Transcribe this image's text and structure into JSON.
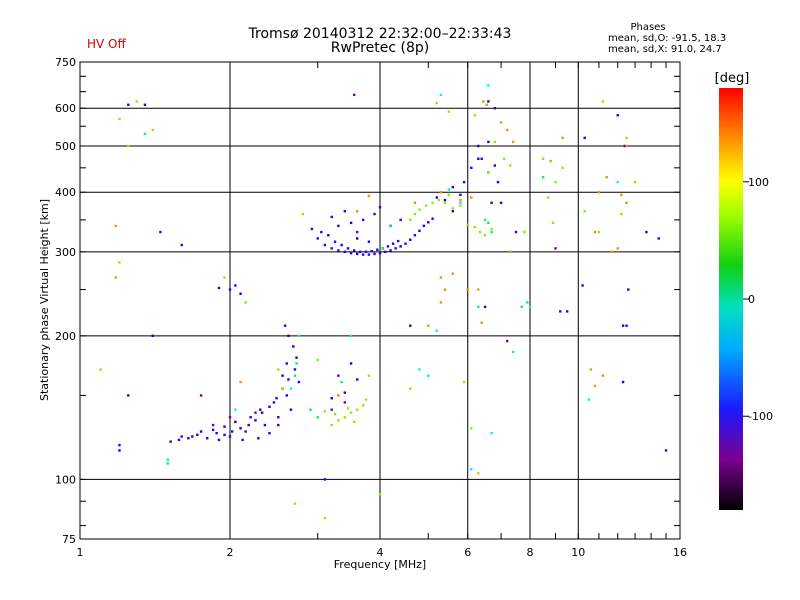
{
  "header": {
    "hv_status": "HV Off",
    "title_line1": "Tromsø 20140312 22:32:00–22:33:43",
    "title_line2": "RwPretec (8p)",
    "phases_title": "Phases",
    "phases_o": "mean, sd,O: -91.5, 18.3",
    "phases_x": "mean, sd,X:  91.0, 24.7"
  },
  "colors": {
    "background": "#ffffff",
    "grid": "#000000",
    "hv_off": "#d00000"
  },
  "chart_data": {
    "type": "scatter",
    "title": "Tromsø 20140312 22:32:00–22:33:43",
    "subtitle": "RwPretec (8p)",
    "xlabel": "Frequency [MHz]",
    "ylabel": "Stationary phase Virtual Height [km]",
    "x_scale": "log",
    "y_scale": "log",
    "xlim": [
      1,
      16
    ],
    "ylim": [
      75,
      750
    ],
    "x_ticks": [
      1,
      2,
      4,
      6,
      8,
      10,
      16
    ],
    "x_tick_labels": [
      "1",
      "2",
      "4",
      "6",
      "8",
      "10",
      "16"
    ],
    "y_ticks": [
      75,
      100,
      200,
      300,
      400,
      500,
      600,
      750
    ],
    "y_tick_labels": [
      "75",
      "100",
      "200",
      "300",
      "400",
      "500",
      "600",
      "750"
    ],
    "grid": true,
    "colorbar": {
      "label": "[deg]",
      "range": [
        -180,
        180
      ],
      "tick_values": [
        100,
        0,
        -100
      ],
      "tick_labels": [
        "100",
        "0",
        "-100"
      ]
    },
    "series": [
      {
        "phase_deg": -100,
        "points": [
          [
            1.52,
            120
          ],
          [
            1.58,
            121
          ],
          [
            1.65,
            122
          ],
          [
            1.72,
            124
          ],
          [
            1.8,
            122
          ],
          [
            1.88,
            125
          ],
          [
            1.95,
            124
          ],
          [
            2.02,
            126
          ],
          [
            2.1,
            128
          ],
          [
            2.18,
            130
          ],
          [
            2.25,
            133
          ],
          [
            2.32,
            138
          ],
          [
            2.4,
            142
          ],
          [
            2.48,
            148
          ],
          [
            2.55,
            155
          ],
          [
            2.62,
            162
          ],
          [
            2.7,
            170
          ],
          [
            2.75,
            160
          ],
          [
            2.6,
            150
          ],
          [
            2.45,
            145
          ],
          [
            2.3,
            140
          ],
          [
            2.2,
            135
          ],
          [
            2.05,
            132
          ],
          [
            1.95,
            129
          ],
          [
            1.85,
            127
          ],
          [
            1.75,
            126
          ],
          [
            1.68,
            123
          ],
          [
            1.6,
            123
          ],
          [
            2.15,
            126
          ],
          [
            2.35,
            130
          ],
          [
            2.5,
            135
          ],
          [
            2.65,
            140
          ],
          [
            2.72,
            180
          ],
          [
            2.68,
            190
          ],
          [
            2.6,
            175
          ],
          [
            2.55,
            165
          ],
          [
            2.5,
            130
          ],
          [
            2.4,
            125
          ],
          [
            2.28,
            122
          ],
          [
            2.12,
            121
          ],
          [
            2.0,
            123
          ],
          [
            1.9,
            121
          ],
          [
            2.58,
            210
          ],
          [
            2.62,
            200
          ],
          [
            2.0,
            250
          ],
          [
            2.05,
            255
          ],
          [
            2.1,
            245
          ],
          [
            1.9,
            252
          ],
          [
            2.92,
            335
          ],
          [
            3.0,
            320
          ],
          [
            3.1,
            310
          ],
          [
            3.2,
            305
          ],
          [
            3.3,
            302
          ],
          [
            3.4,
            300
          ],
          [
            3.5,
            298
          ],
          [
            3.6,
            297
          ],
          [
            3.7,
            296
          ],
          [
            3.8,
            296
          ],
          [
            3.9,
            297
          ],
          [
            4.0,
            298
          ],
          [
            4.1,
            300
          ],
          [
            4.2,
            302
          ],
          [
            4.3,
            305
          ],
          [
            4.4,
            308
          ],
          [
            4.5,
            312
          ],
          [
            4.6,
            318
          ],
          [
            4.7,
            325
          ],
          [
            4.8,
            332
          ],
          [
            4.9,
            340
          ],
          [
            5.0,
            346
          ],
          [
            5.1,
            352
          ],
          [
            3.05,
            330
          ],
          [
            3.15,
            325
          ],
          [
            3.25,
            315
          ],
          [
            3.35,
            310
          ],
          [
            3.45,
            305
          ],
          [
            3.55,
            302
          ],
          [
            3.65,
            300
          ],
          [
            3.75,
            300
          ],
          [
            3.85,
            301
          ],
          [
            3.95,
            303
          ],
          [
            4.05,
            305
          ],
          [
            4.15,
            308
          ],
          [
            4.25,
            312
          ],
          [
            4.35,
            316
          ],
          [
            3.3,
            340
          ],
          [
            3.5,
            345
          ],
          [
            3.7,
            350
          ],
          [
            3.9,
            360
          ],
          [
            4.0,
            372
          ],
          [
            3.6,
            320
          ],
          [
            3.8,
            315
          ],
          [
            4.2,
            340
          ],
          [
            4.4,
            350
          ],
          [
            3.2,
            355
          ],
          [
            3.4,
            365
          ],
          [
            5.2,
            390
          ],
          [
            5.4,
            385
          ],
          [
            5.6,
            365
          ],
          [
            3.2,
            148
          ],
          [
            3.4,
            152
          ],
          [
            3.6,
            162
          ],
          [
            3.5,
            175
          ],
          [
            3.3,
            165
          ],
          [
            5.9,
            420
          ],
          [
            6.1,
            450
          ],
          [
            6.4,
            470
          ],
          [
            6.6,
            440
          ],
          [
            6.9,
            420
          ],
          [
            6.3,
            500
          ],
          [
            6.7,
            380
          ],
          [
            7.0,
            380
          ],
          [
            1.25,
            610
          ],
          [
            1.35,
            610
          ],
          [
            1.25,
            150
          ],
          [
            1.6,
            310
          ],
          [
            1.4,
            200
          ],
          [
            1.45,
            330
          ],
          [
            9.2,
            225
          ],
          [
            9.5,
            225
          ],
          [
            10.2,
            255
          ],
          [
            12.3,
            210
          ],
          [
            12.5,
            210
          ],
          [
            12.3,
            160
          ],
          [
            12.6,
            250
          ],
          [
            13.7,
            330
          ],
          [
            14.5,
            320
          ],
          [
            15.0,
            115
          ],
          [
            1.2,
            115
          ],
          [
            1.2,
            118
          ],
          [
            6.5,
            230
          ],
          [
            5.6,
            410
          ],
          [
            6.8,
            455
          ],
          [
            5.8,
            395
          ],
          [
            6.3,
            470
          ],
          [
            7.5,
            330
          ],
          [
            6.8,
            600
          ],
          [
            6.6,
            620
          ],
          [
            10.3,
            520
          ],
          [
            12.0,
            580
          ],
          [
            12.4,
            500
          ],
          [
            6.6,
            510
          ],
          [
            3.1,
            100
          ],
          [
            4.6,
            210
          ]
        ]
      },
      {
        "phase_deg": -150,
        "points": [
          [
            1.85,
            130
          ],
          [
            2.0,
            135
          ],
          [
            2.25,
            138
          ],
          [
            3.2,
            140
          ],
          [
            3.4,
            145
          ],
          [
            3.6,
            330
          ],
          [
            9.0,
            305
          ],
          [
            1.75,
            150
          ],
          [
            3.55,
            640
          ],
          [
            7.2,
            195
          ]
        ]
      },
      {
        "phase_deg": 20,
        "points": [
          [
            2.7,
            165
          ],
          [
            2.72,
            175
          ],
          [
            3.3,
            150
          ],
          [
            3.35,
            160
          ],
          [
            1.5,
            108
          ],
          [
            2.9,
            140
          ],
          [
            3.0,
            135
          ],
          [
            4.05,
            305
          ],
          [
            4.2,
            340
          ],
          [
            6.6,
            345
          ],
          [
            6.7,
            330
          ],
          [
            7.7,
            230
          ],
          [
            8.5,
            430
          ]
        ]
      },
      {
        "phase_deg": 80,
        "points": [
          [
            3.2,
            130
          ],
          [
            3.3,
            133
          ],
          [
            3.4,
            135
          ],
          [
            3.5,
            138
          ],
          [
            3.6,
            140
          ],
          [
            3.7,
            143
          ],
          [
            3.75,
            147
          ],
          [
            3.25,
            137
          ],
          [
            3.45,
            141
          ],
          [
            3.1,
            139
          ],
          [
            3.55,
            132
          ],
          [
            4.6,
            350
          ],
          [
            4.7,
            360
          ],
          [
            4.8,
            368
          ],
          [
            4.95,
            375
          ],
          [
            5.1,
            380
          ],
          [
            5.25,
            385
          ],
          [
            5.4,
            380
          ],
          [
            5.6,
            370
          ],
          [
            5.8,
            375
          ],
          [
            5.5,
            395
          ],
          [
            6.0,
            342
          ],
          [
            6.2,
            338
          ],
          [
            6.35,
            330
          ],
          [
            6.5,
            325
          ],
          [
            6.7,
            335
          ],
          [
            6.6,
            440
          ],
          [
            6.8,
            510
          ],
          [
            7.1,
            470
          ],
          [
            8.5,
            470
          ],
          [
            9.0,
            420
          ],
          [
            9.3,
            450
          ],
          [
            1.3,
            620
          ],
          [
            1.2,
            570
          ],
          [
            1.25,
            500
          ],
          [
            1.1,
            170
          ],
          [
            1.2,
            285
          ],
          [
            1.4,
            540
          ],
          [
            8.9,
            345
          ],
          [
            10.3,
            365
          ],
          [
            11.0,
            330
          ],
          [
            11.2,
            620
          ],
          [
            13.0,
            420
          ],
          [
            12.2,
            360
          ],
          [
            12.5,
            520
          ],
          [
            6.2,
            580
          ],
          [
            3.8,
            165
          ],
          [
            4.6,
            155
          ],
          [
            5.9,
            160
          ],
          [
            6.1,
            128
          ],
          [
            2.5,
            170
          ],
          [
            2.55,
            155
          ],
          [
            1.95,
            265
          ],
          [
            2.15,
            235
          ],
          [
            2.8,
            360
          ],
          [
            3.0,
            178
          ],
          [
            5.2,
            615
          ],
          [
            5.5,
            590
          ],
          [
            7.3,
            455
          ],
          [
            7.8,
            330
          ],
          [
            8.7,
            390
          ],
          [
            4.0,
            93
          ],
          [
            6.3,
            103
          ],
          [
            3.1,
            83
          ],
          [
            2.7,
            89
          ]
        ]
      },
      {
        "phase_deg": 140,
        "points": [
          [
            3.3,
            150
          ],
          [
            3.6,
            365
          ],
          [
            4.7,
            380
          ],
          [
            5.3,
            400
          ],
          [
            5.8,
            385
          ],
          [
            6.1,
            390
          ],
          [
            6.45,
            620
          ],
          [
            6.55,
            610
          ],
          [
            7.0,
            560
          ],
          [
            7.2,
            540
          ],
          [
            7.4,
            510
          ],
          [
            8.8,
            465
          ],
          [
            11.0,
            400
          ],
          [
            11.2,
            165
          ],
          [
            11.4,
            430
          ],
          [
            12.2,
            395
          ],
          [
            12.5,
            500
          ],
          [
            1.18,
            340
          ],
          [
            1.18,
            265
          ],
          [
            5.4,
            250
          ],
          [
            5.3,
            265
          ],
          [
            5.6,
            270
          ],
          [
            6.0,
            250
          ],
          [
            7.3,
            300
          ],
          [
            9.3,
            520
          ],
          [
            10.8,
            330
          ],
          [
            11.7,
            300
          ],
          [
            12.0,
            305
          ],
          [
            12.5,
            380
          ],
          [
            3.8,
            393
          ],
          [
            2.1,
            160
          ],
          [
            5.0,
            210
          ],
          [
            6.4,
            213
          ],
          [
            10.6,
            170
          ],
          [
            10.8,
            157
          ],
          [
            5.3,
            235
          ],
          [
            6.3,
            250
          ]
        ]
      },
      {
        "phase_deg": 0,
        "points": [
          [
            1.5,
            110
          ],
          [
            1.35,
            530
          ],
          [
            5.5,
            405
          ],
          [
            6.3,
            230
          ],
          [
            6.5,
            350
          ],
          [
            5.0,
            165
          ],
          [
            8.0,
            230
          ],
          [
            7.9,
            235
          ]
        ]
      },
      {
        "phase_deg": -20,
        "points": [
          [
            2.75,
            200
          ],
          [
            5.3,
            640
          ],
          [
            6.6,
            670
          ],
          [
            5.8,
            380
          ],
          [
            6.1,
            105
          ],
          [
            7.4,
            185
          ],
          [
            10.5,
            147
          ],
          [
            3.5,
            200
          ],
          [
            2.05,
            140
          ],
          [
            12.0,
            420
          ],
          [
            5.2,
            205
          ],
          [
            4.8,
            170
          ],
          [
            6.7,
            125
          ],
          [
            2.65,
            155
          ]
        ]
      }
    ]
  }
}
